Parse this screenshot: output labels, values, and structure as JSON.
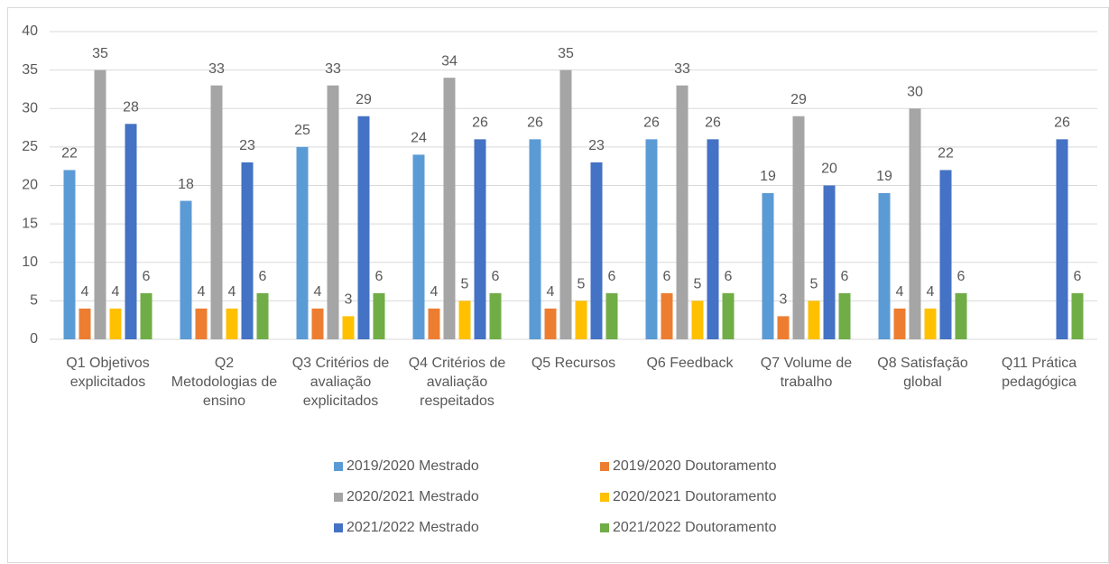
{
  "chart_data": {
    "type": "bar",
    "categories": [
      "Q1 Objetivos explicitados",
      "Q2 Metodologias de ensino",
      "Q3 Critérios de avaliação explicitados",
      "Q4 Critérios de avaliação respeitados",
      "Q5 Recursos",
      "Q6 Feedback",
      "Q7 Volume de trabalho",
      "Q8 Satisfação global",
      "Q11 Prática pedagógica"
    ],
    "series": [
      {
        "name": "2019/2020 Mestrado",
        "color": "#5b9bd5",
        "values": [
          22,
          18,
          25,
          24,
          26,
          26,
          19,
          19,
          null
        ]
      },
      {
        "name": "2019/2020 Doutoramento",
        "color": "#ed7d31",
        "values": [
          4,
          4,
          4,
          4,
          4,
          6,
          3,
          4,
          null
        ]
      },
      {
        "name": "2020/2021 Mestrado",
        "color": "#a5a5a5",
        "values": [
          35,
          33,
          33,
          34,
          35,
          33,
          29,
          30,
          null
        ]
      },
      {
        "name": "2020/2021 Doutoramento",
        "color": "#ffc000",
        "values": [
          4,
          4,
          3,
          5,
          5,
          5,
          5,
          4,
          null
        ]
      },
      {
        "name": "2021/2022 Mestrado",
        "color": "#4472c4",
        "values": [
          28,
          23,
          29,
          26,
          23,
          26,
          20,
          22,
          26
        ]
      },
      {
        "name": "2021/2022 Doutoramento",
        "color": "#70ad47",
        "values": [
          6,
          6,
          6,
          6,
          6,
          6,
          6,
          6,
          6
        ]
      }
    ],
    "ylim": [
      0,
      40
    ],
    "yticks": [
      0,
      5,
      10,
      15,
      20,
      25,
      30,
      35,
      40
    ],
    "grid": true,
    "legend": "bottom"
  }
}
